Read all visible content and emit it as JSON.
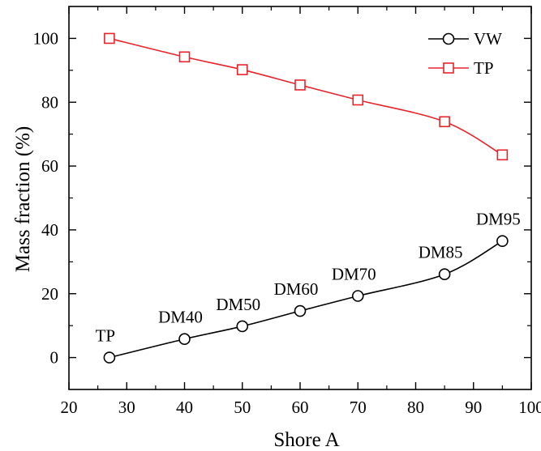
{
  "chart_data": {
    "type": "line",
    "xlabel": "Shore A",
    "ylabel": "Mass fraction (%)",
    "xlim": [
      20,
      100
    ],
    "ylim": [
      -10,
      110
    ],
    "xticks": [
      20,
      30,
      40,
      50,
      60,
      70,
      80,
      90,
      100
    ],
    "yticks": [
      0,
      20,
      40,
      60,
      80,
      100
    ],
    "grid": false,
    "legend_position": "top-right",
    "series": [
      {
        "name": "VW",
        "color": "#000000",
        "marker": "circle",
        "x": [
          27,
          40,
          50,
          60,
          70,
          85,
          95
        ],
        "y": [
          0,
          5.8,
          9.8,
          14.6,
          19.3,
          26.1,
          36.5
        ]
      },
      {
        "name": "TP",
        "color": "#e8232a",
        "marker": "square",
        "x": [
          27,
          40,
          50,
          60,
          70,
          85,
          95
        ],
        "y": [
          100,
          94.2,
          90.2,
          85.4,
          80.7,
          73.9,
          63.5
        ]
      }
    ],
    "annotations": [
      {
        "text": "TP",
        "x": 27,
        "y": 0
      },
      {
        "text": "DM40",
        "x": 40,
        "y": 5.8
      },
      {
        "text": "DM50",
        "x": 50,
        "y": 9.8
      },
      {
        "text": "DM60",
        "x": 60,
        "y": 14.6
      },
      {
        "text": "DM70",
        "x": 70,
        "y": 19.3
      },
      {
        "text": "DM85",
        "x": 85,
        "y": 26.1
      },
      {
        "text": "DM95",
        "x": 95,
        "y": 36.5
      }
    ]
  }
}
